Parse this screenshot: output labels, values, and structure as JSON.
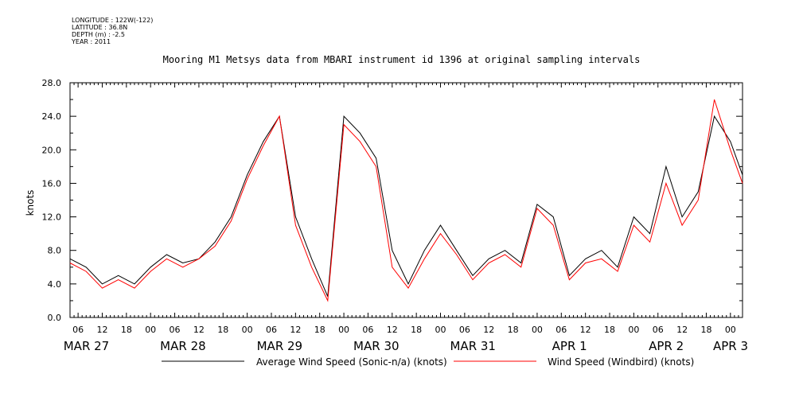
{
  "header": {
    "longitude": "LONGITUDE : 122W(-122)",
    "latitude": "LATITUDE : 36.8N",
    "depth": "DEPTH (m) : -2.5",
    "year": "YEAR : 2011"
  },
  "chart_data": {
    "type": "line",
    "title": "Mooring M1 Metsys data from MBARI instrument id 1396 at original sampling intervals",
    "ylabel": "knots",
    "xlabel": "",
    "ylim": [
      0,
      28
    ],
    "yticks": [
      "0.0",
      "4.0",
      "8.0",
      "12.0",
      "16.0",
      "20.0",
      "24.0",
      "28.0"
    ],
    "xlim_hours": [
      "2011-03-27 04:00",
      "2011-04-03 03:00"
    ],
    "hour_ticks": [
      "06",
      "12",
      "18",
      "00",
      "06",
      "12",
      "18",
      "00",
      "06",
      "12",
      "18",
      "00",
      "06",
      "12",
      "18",
      "00",
      "06",
      "12",
      "18",
      "00",
      "06",
      "12",
      "18",
      "00",
      "06",
      "12",
      "18",
      "00"
    ],
    "date_labels": [
      "MAR 27",
      "MAR 28",
      "MAR 29",
      "MAR 30",
      "MAR 31",
      "APR  1",
      "APR  2",
      "APR  3"
    ],
    "grid": false,
    "legend_position": "bottom",
    "series": [
      {
        "name": "Average Wind Speed (Sonic-n/a) (knots)",
        "color": "#000000",
        "x": [
          "2011-03-27 04:00",
          "2011-03-27 08:00",
          "2011-03-27 12:00",
          "2011-03-27 16:00",
          "2011-03-27 20:00",
          "2011-03-28 00:00",
          "2011-03-28 04:00",
          "2011-03-28 08:00",
          "2011-03-28 12:00",
          "2011-03-28 16:00",
          "2011-03-28 20:00",
          "2011-03-29 00:00",
          "2011-03-29 04:00",
          "2011-03-29 08:00",
          "2011-03-29 12:00",
          "2011-03-29 16:00",
          "2011-03-29 20:00",
          "2011-03-30 00:00",
          "2011-03-30 04:00",
          "2011-03-30 08:00",
          "2011-03-30 12:00",
          "2011-03-30 16:00",
          "2011-03-30 20:00",
          "2011-03-31 00:00",
          "2011-03-31 04:00",
          "2011-03-31 08:00",
          "2011-03-31 12:00",
          "2011-03-31 16:00",
          "2011-03-31 20:00",
          "2011-04-01 00:00",
          "2011-04-01 04:00",
          "2011-04-01 08:00",
          "2011-04-01 12:00",
          "2011-04-01 16:00",
          "2011-04-01 20:00",
          "2011-04-02 00:00",
          "2011-04-02 04:00",
          "2011-04-02 08:00",
          "2011-04-02 12:00",
          "2011-04-02 16:00",
          "2011-04-02 20:00",
          "2011-04-03 00:00",
          "2011-04-03 03:00"
        ],
        "values": [
          7,
          6,
          4,
          5,
          4,
          6,
          7.5,
          6.5,
          7,
          9,
          12,
          17,
          21,
          24,
          12,
          7,
          2.5,
          24,
          22,
          19,
          8,
          4,
          8,
          11,
          8,
          5,
          7,
          8,
          6.5,
          13.5,
          12,
          5,
          7,
          8,
          6,
          12,
          10,
          18,
          12,
          15,
          24,
          21,
          17
        ]
      },
      {
        "name": "Wind Speed (Windbird) (knots)",
        "color": "#ff0000",
        "x": [
          "2011-03-27 04:00",
          "2011-03-27 08:00",
          "2011-03-27 12:00",
          "2011-03-27 16:00",
          "2011-03-27 20:00",
          "2011-03-28 00:00",
          "2011-03-28 04:00",
          "2011-03-28 08:00",
          "2011-03-28 12:00",
          "2011-03-28 16:00",
          "2011-03-28 20:00",
          "2011-03-29 00:00",
          "2011-03-29 04:00",
          "2011-03-29 08:00",
          "2011-03-29 12:00",
          "2011-03-29 16:00",
          "2011-03-29 20:00",
          "2011-03-30 00:00",
          "2011-03-30 04:00",
          "2011-03-30 08:00",
          "2011-03-30 12:00",
          "2011-03-30 16:00",
          "2011-03-30 20:00",
          "2011-03-31 00:00",
          "2011-03-31 04:00",
          "2011-03-31 08:00",
          "2011-03-31 12:00",
          "2011-03-31 16:00",
          "2011-03-31 20:00",
          "2011-04-01 00:00",
          "2011-04-01 04:00",
          "2011-04-01 08:00",
          "2011-04-01 12:00",
          "2011-04-01 16:00",
          "2011-04-01 20:00",
          "2011-04-02 00:00",
          "2011-04-02 04:00",
          "2011-04-02 08:00",
          "2011-04-02 12:00",
          "2011-04-02 16:00",
          "2011-04-02 20:00",
          "2011-04-03 00:00",
          "2011-04-03 03:00"
        ],
        "values": [
          6.5,
          5.5,
          3.5,
          4.5,
          3.5,
          5.5,
          7,
          6,
          7,
          8.5,
          11.5,
          16.5,
          20.5,
          24,
          11,
          6,
          2,
          23,
          21,
          18,
          6,
          3.5,
          7,
          10,
          7.5,
          4.5,
          6.5,
          7.5,
          6,
          13,
          11,
          4.5,
          6.5,
          7,
          5.5,
          11,
          9,
          16,
          11,
          14,
          26,
          20,
          16
        ]
      }
    ]
  }
}
